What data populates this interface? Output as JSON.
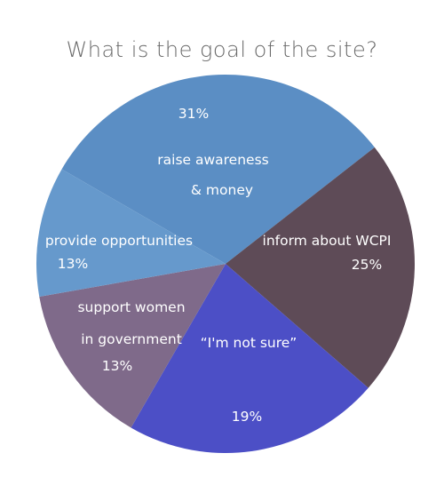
{
  "chart_data": {
    "type": "pie",
    "title": "What is the goal of the site?",
    "slices": [
      {
        "label_lines": [
          "raise awareness",
          "& money"
        ],
        "value_label": "31%",
        "value": 31,
        "color": "#5b8ec4"
      },
      {
        "label_lines": [
          "inform about WCPI"
        ],
        "value_label": "25%",
        "value": 25,
        "color": "#5e4b57"
      },
      {
        "label_lines": [
          "“I'm not sure”"
        ],
        "value_label": "19%",
        "value": 19,
        "color": "#4c4fc6"
      },
      {
        "label_lines": [
          "support women",
          "in government"
        ],
        "value_label": "13%",
        "value": 13,
        "color": "#7f6a8a"
      },
      {
        "label_lines": [
          "provide opportunities"
        ],
        "value_label": "13%",
        "value": 13,
        "color": "#6699cc"
      }
    ]
  }
}
